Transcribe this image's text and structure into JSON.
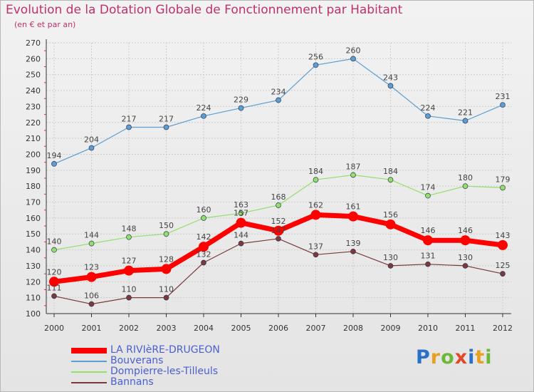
{
  "title": "Evolution de la Dotation Globale de Fonctionnement par Habitant",
  "subtitle": "(en € et par an)",
  "colors": {
    "title": "#c0306a",
    "legend_text": "#4a5fd0",
    "grid": "#cccccc"
  },
  "logo": {
    "letters": [
      "P",
      "r",
      "o",
      "x",
      "i",
      "t",
      "i"
    ],
    "colors": [
      "#2a6fc9",
      "#e8a020",
      "#6cb83a",
      "#e04a2a",
      "#2a6fc9",
      "#e8a020",
      "#6cb83a"
    ]
  },
  "chart_data": {
    "type": "line",
    "title": "Evolution de la Dotation Globale de Fonctionnement par Habitant",
    "subtitle": "(en € et par an)",
    "xlabel": "",
    "ylabel": "",
    "x": [
      "2000",
      "2001",
      "2002",
      "2003",
      "2004",
      "2005",
      "2006",
      "2007",
      "2008",
      "2009",
      "2010",
      "2011",
      "2012"
    ],
    "ylim": [
      100,
      270
    ],
    "yticks": [
      100,
      110,
      120,
      130,
      140,
      150,
      160,
      170,
      180,
      190,
      200,
      210,
      220,
      230,
      240,
      250,
      260,
      270
    ],
    "grid": true,
    "legend_position": "bottom-left",
    "series": [
      {
        "name": "LA RIVIèRE-DRUGEON",
        "color": "#ff0000",
        "width": 7,
        "marker": 7,
        "values": [
          120,
          123,
          127,
          128,
          142,
          157,
          152,
          162,
          161,
          156,
          146,
          146,
          143
        ]
      },
      {
        "name": "Bouverans",
        "color": "#5a9ed2",
        "width": 1.2,
        "marker": 3.5,
        "values": [
          194,
          204,
          217,
          217,
          224,
          229,
          234,
          256,
          260,
          243,
          224,
          221,
          231
        ]
      },
      {
        "name": "Dompierre-les-Tilleuls",
        "color": "#90e06a",
        "width": 1.2,
        "marker": 3.5,
        "values": [
          140,
          144,
          148,
          150,
          160,
          163,
          168,
          184,
          187,
          184,
          174,
          180,
          179
        ]
      },
      {
        "name": "Bannans",
        "color": "#7a3a3a",
        "width": 1.2,
        "marker": 3.5,
        "values": [
          111,
          106,
          110,
          110,
          132,
          144,
          147,
          137,
          139,
          130,
          131,
          130,
          125
        ]
      }
    ],
    "data_labels": {
      "LA RIVIèRE-DRUGEON": [
        "120",
        "123",
        "127",
        "128",
        "142",
        "157",
        "152",
        "162",
        "161",
        "156",
        "146",
        "146",
        "143"
      ],
      "Bouverans": [
        "194",
        "204",
        "217",
        "217",
        "224",
        "229",
        "234",
        "256",
        "260",
        "243",
        "224",
        "221",
        "231"
      ],
      "Dompierre-les-Tilleuls": [
        "140",
        "144",
        "148",
        "150",
        "160",
        "163",
        "168",
        "184",
        "187",
        "184",
        "174",
        "180",
        "179"
      ],
      "Bannans": [
        "111",
        "106",
        "110",
        "110",
        "132",
        "144",
        "147",
        "137",
        "139",
        "130",
        "131",
        "130",
        "125"
      ]
    }
  }
}
